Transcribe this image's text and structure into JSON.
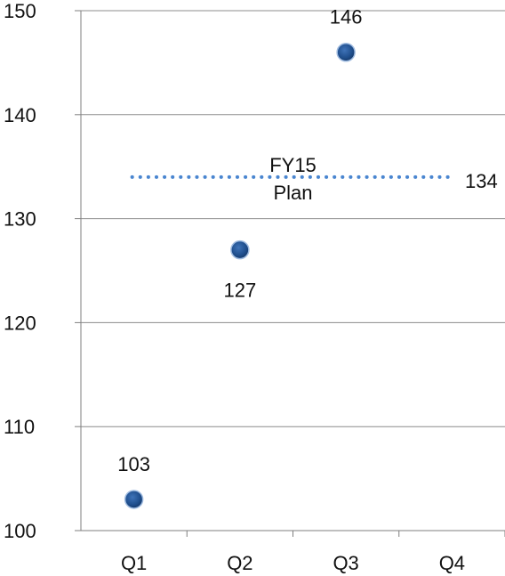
{
  "chart_data": {
    "type": "scatter",
    "title": "",
    "xlabel": "",
    "ylabel": "",
    "categories": [
      "Q1",
      "Q2",
      "Q3",
      "Q4"
    ],
    "series": [
      {
        "values": [
          103,
          127,
          146,
          null
        ],
        "data_labels": [
          "103",
          "127",
          "146",
          ""
        ],
        "color": "#1f4e8c"
      }
    ],
    "ylim": [
      100,
      150
    ],
    "yticks": [
      100,
      110,
      120,
      130,
      140,
      150
    ],
    "ytick_labels": [
      "100",
      "110",
      "120",
      "130",
      "140",
      "150"
    ],
    "grid": true,
    "legend": "none",
    "reference_line": {
      "value": 134,
      "value_label": "134",
      "label_line1": "FY15",
      "label_line2": "Plan",
      "style": "dotted",
      "color": "#4a86d0"
    },
    "gridline_color": "#8c8c8c",
    "axis_color": "#7f7f7f"
  }
}
